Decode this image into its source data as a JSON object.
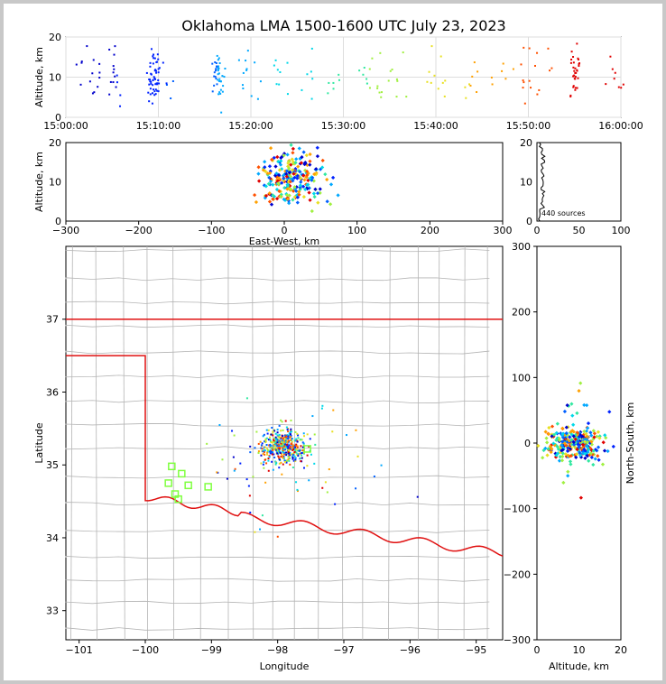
{
  "title": "Oklahoma LMA 1500-1600 UTC July 23, 2023",
  "colors": {
    "state_border": "#e01010",
    "county_lines": "#b4b4b4",
    "station": "#80ff40",
    "bg": "#ffffff"
  },
  "chart_data": [
    {
      "id": "time-height",
      "type": "scatter",
      "ylabel": "Altitude, km",
      "xlim": [
        "15:00:00",
        "16:00:00"
      ],
      "ylim": [
        0,
        20
      ],
      "x_ticks": [
        "15:00:00",
        "15:10:00",
        "15:20:00",
        "15:30:00",
        "15:40:00",
        "15:50:00",
        "16:00:00"
      ],
      "y_ticks": [
        "0",
        "10",
        "20"
      ],
      "colormap": "time, blue to red"
    },
    {
      "id": "ew-alt",
      "type": "scatter",
      "xlabel": "East-West, km",
      "ylabel": "Altitude, km",
      "xlim": [
        -300,
        300
      ],
      "ylim": [
        0,
        20
      ],
      "x_ticks": [
        "−300",
        "−200",
        "−100",
        "0",
        "100",
        "200",
        "300"
      ],
      "y_ticks": [
        "0",
        "10",
        "20"
      ]
    },
    {
      "id": "alt-hist",
      "type": "line",
      "annotation": "440 sources",
      "xlim": [
        0,
        100
      ],
      "ylim": [
        0,
        20
      ],
      "x_ticks": [
        "0",
        "50",
        "100"
      ],
      "y_ticks": [
        "0",
        "10",
        "20"
      ]
    },
    {
      "id": "plan-view",
      "type": "scatter",
      "xlabel": "Longitude",
      "ylabel": "Latitude",
      "xlim": [
        -101.2,
        -94.6
      ],
      "ylim": [
        32.6,
        38.0
      ],
      "x_ticks": [
        "−101",
        "−100",
        "−99",
        "−98",
        "−97",
        "−96",
        "−95"
      ],
      "y_ticks": [
        "33",
        "34",
        "35",
        "36",
        "37"
      ],
      "stations": [
        [
          -99.6,
          34.98
        ],
        [
          -99.45,
          34.88
        ],
        [
          -99.35,
          34.72
        ],
        [
          -99.05,
          34.7
        ],
        [
          -99.55,
          34.6
        ],
        [
          -99.65,
          34.75
        ],
        [
          -99.5,
          34.53
        ],
        [
          -97.55,
          35.22
        ]
      ]
    },
    {
      "id": "alt-ns",
      "type": "scatter",
      "xlabel": "Altitude, km",
      "ylabel": "North-South, km",
      "xlim": [
        0,
        20
      ],
      "ylim": [
        -300,
        300
      ],
      "x_ticks": [
        "0",
        "10",
        "20"
      ],
      "y_ticks": [
        "−300",
        "−200",
        "−100",
        "0",
        "100",
        "200",
        "300"
      ]
    }
  ]
}
